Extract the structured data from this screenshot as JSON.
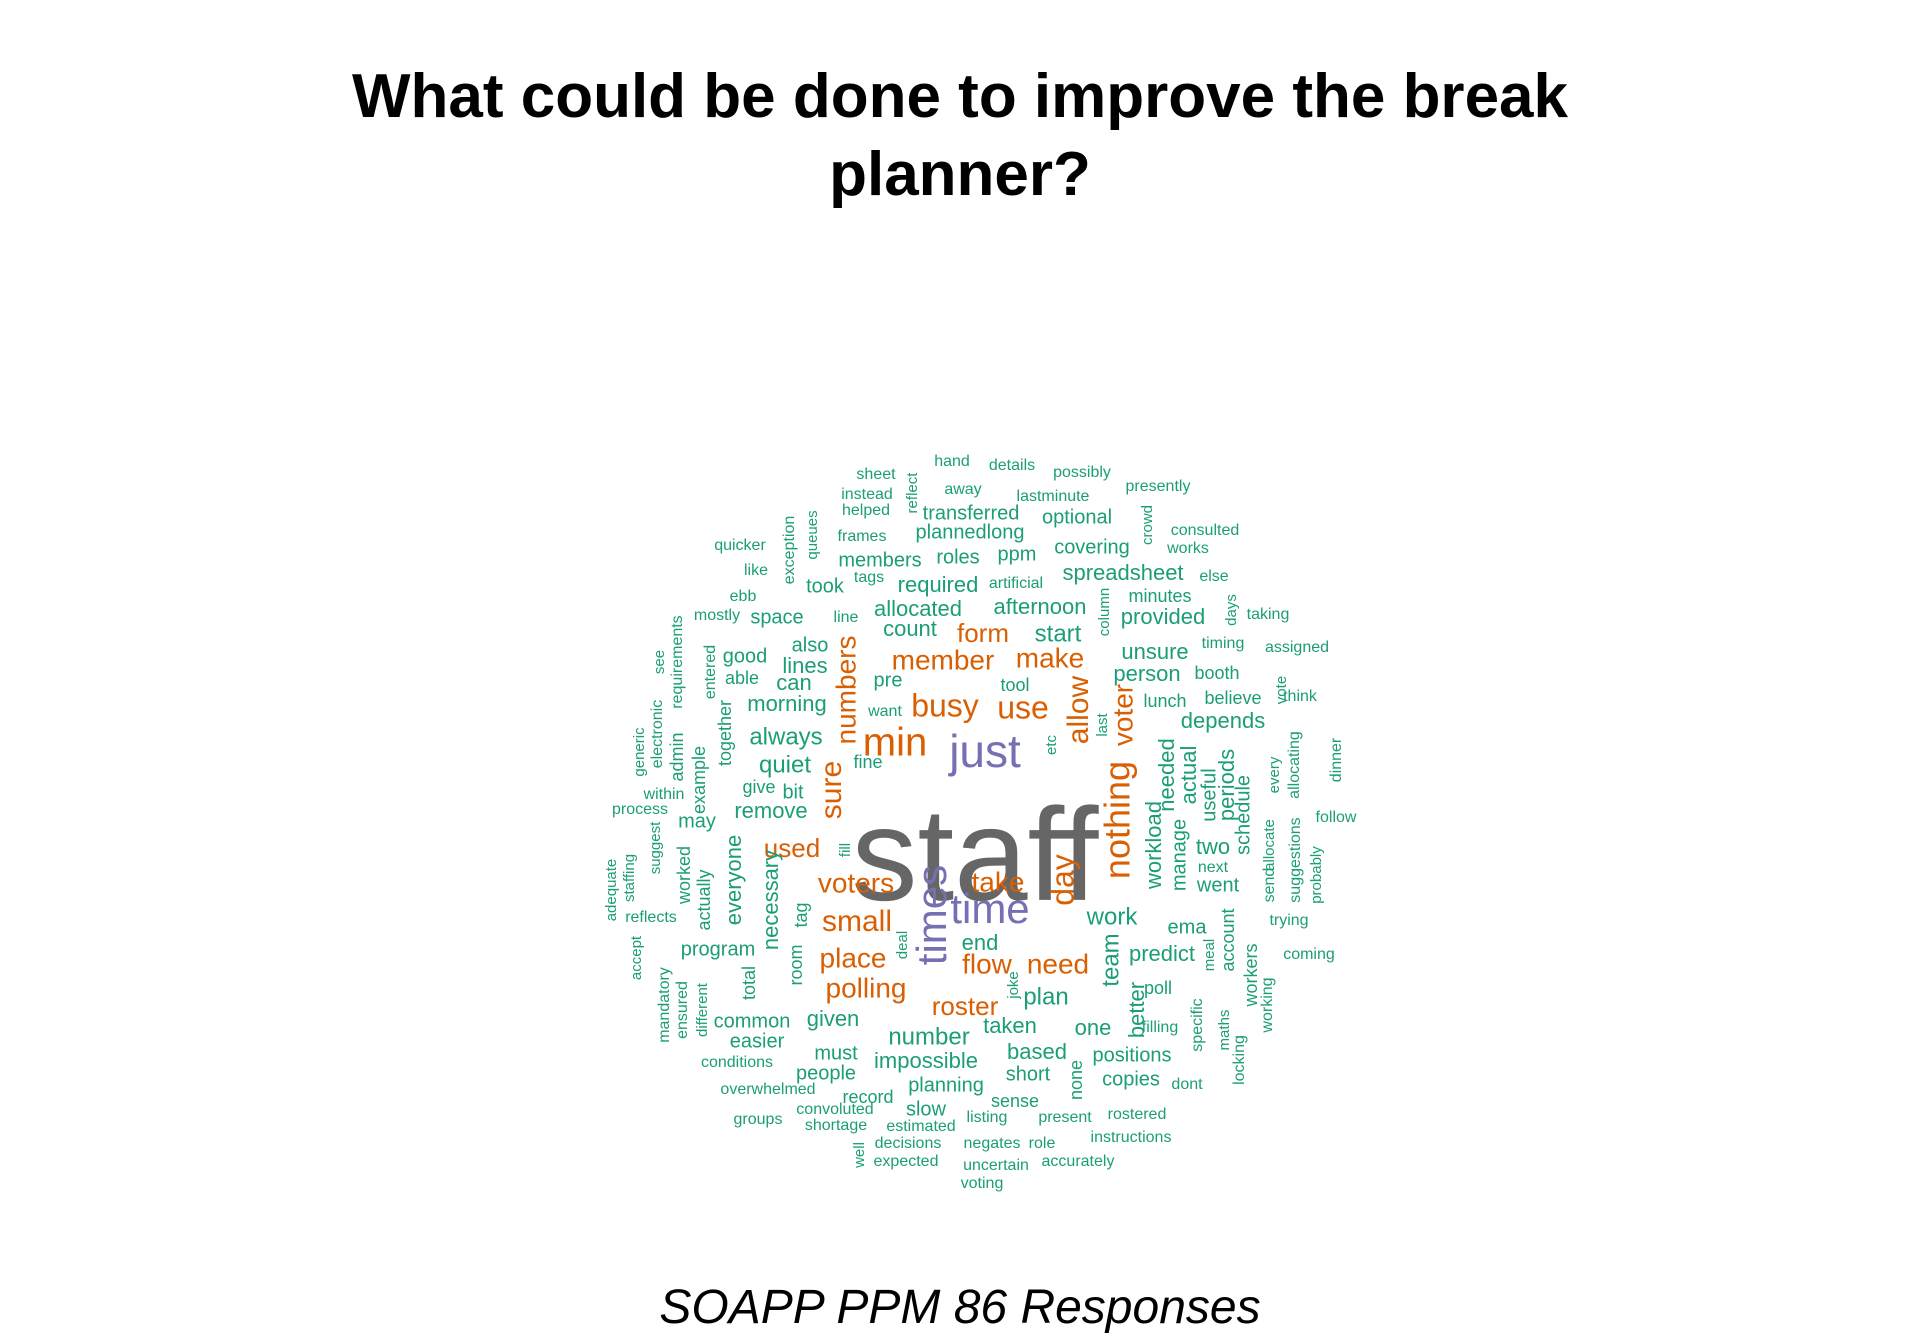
{
  "title": {
    "line1": "What could be done to improve the break",
    "line2": "planner?"
  },
  "caption": "SOAPP PPM 86 Responses",
  "colors": {
    "tier1": "#666666",
    "tier2": "#7570b3",
    "tier3": "#d95f02",
    "tier4": "#1b9e77"
  },
  "words": [
    {
      "text": "staff",
      "tier": 1,
      "weight": 10
    },
    {
      "text": "just",
      "tier": 2,
      "weight": 6
    },
    {
      "text": "time",
      "tier": 2,
      "weight": 6
    },
    {
      "text": "times",
      "tier": 2,
      "weight": 6
    },
    {
      "text": "min",
      "tier": 3,
      "weight": 5
    },
    {
      "text": "busy",
      "tier": 3,
      "weight": 4
    },
    {
      "text": "use",
      "tier": 3,
      "weight": 4
    },
    {
      "text": "nothing",
      "tier": 3,
      "weight": 4
    },
    {
      "text": "allow",
      "tier": 3,
      "weight": 4
    },
    {
      "text": "sure",
      "tier": 3,
      "weight": 4
    },
    {
      "text": "day",
      "tier": 3,
      "weight": 4
    },
    {
      "text": "voter",
      "tier": 3,
      "weight": 3
    },
    {
      "text": "numbers",
      "tier": 3,
      "weight": 3
    },
    {
      "text": "make",
      "tier": 3,
      "weight": 3
    },
    {
      "text": "member",
      "tier": 3,
      "weight": 3
    },
    {
      "text": "form",
      "tier": 3,
      "weight": 3
    },
    {
      "text": "voters",
      "tier": 3,
      "weight": 3
    },
    {
      "text": "take",
      "tier": 3,
      "weight": 3
    },
    {
      "text": "small",
      "tier": 3,
      "weight": 3
    },
    {
      "text": "place",
      "tier": 3,
      "weight": 3
    },
    {
      "text": "need",
      "tier": 3,
      "weight": 3
    },
    {
      "text": "flow",
      "tier": 3,
      "weight": 3
    },
    {
      "text": "polling",
      "tier": 3,
      "weight": 3
    },
    {
      "text": "roster",
      "tier": 3,
      "weight": 3
    },
    {
      "text": "used",
      "tier": 3,
      "weight": 3
    },
    {
      "text": "always",
      "tier": 4,
      "weight": 2
    },
    {
      "text": "quiet",
      "tier": 4,
      "weight": 2
    },
    {
      "text": "morning",
      "tier": 4,
      "weight": 2
    },
    {
      "text": "remove",
      "tier": 4,
      "weight": 2
    },
    {
      "text": "workload",
      "tier": 4,
      "weight": 2
    },
    {
      "text": "needed",
      "tier": 4,
      "weight": 2
    },
    {
      "text": "manage",
      "tier": 4,
      "weight": 2
    },
    {
      "text": "actual",
      "tier": 4,
      "weight": 2
    },
    {
      "text": "useful",
      "tier": 4,
      "weight": 2
    },
    {
      "text": "periods",
      "tier": 4,
      "weight": 2
    },
    {
      "text": "person",
      "tier": 4,
      "weight": 2
    },
    {
      "text": "unsure",
      "tier": 4,
      "weight": 2
    },
    {
      "text": "depends",
      "tier": 4,
      "weight": 2
    },
    {
      "text": "two",
      "tier": 4,
      "weight": 2
    },
    {
      "text": "went",
      "tier": 4,
      "weight": 2
    },
    {
      "text": "work",
      "tier": 4,
      "weight": 2
    },
    {
      "text": "team",
      "tier": 4,
      "weight": 2
    },
    {
      "text": "predict",
      "tier": 4,
      "weight": 2
    },
    {
      "text": "end",
      "tier": 4,
      "weight": 2
    },
    {
      "text": "plan",
      "tier": 4,
      "weight": 2
    },
    {
      "text": "better",
      "tier": 4,
      "weight": 2
    },
    {
      "text": "taken",
      "tier": 4,
      "weight": 2
    },
    {
      "text": "one",
      "tier": 4,
      "weight": 2
    },
    {
      "text": "number",
      "tier": 4,
      "weight": 2
    },
    {
      "text": "impossible",
      "tier": 4,
      "weight": 2
    },
    {
      "text": "based",
      "tier": 4,
      "weight": 2
    },
    {
      "text": "short",
      "tier": 4,
      "weight": 2
    },
    {
      "text": "start",
      "tier": 4,
      "weight": 2
    },
    {
      "text": "count",
      "tier": 4,
      "weight": 2
    },
    {
      "text": "allocated",
      "tier": 4,
      "weight": 2
    },
    {
      "text": "afternoon",
      "tier": 4,
      "weight": 2
    },
    {
      "text": "provided",
      "tier": 4,
      "weight": 2
    },
    {
      "text": "spreadsheet",
      "tier": 4,
      "weight": 2
    },
    {
      "text": "required",
      "tier": 4,
      "weight": 2
    },
    {
      "text": "members",
      "tier": 4,
      "weight": 2
    },
    {
      "text": "roles",
      "tier": 4,
      "weight": 2
    },
    {
      "text": "covering",
      "tier": 4,
      "weight": 2
    },
    {
      "text": "plannedlong",
      "tier": 4,
      "weight": 2
    },
    {
      "text": "transferred",
      "tier": 4,
      "weight": 2
    },
    {
      "text": "optional",
      "tier": 4,
      "weight": 2
    },
    {
      "text": "lines",
      "tier": 4,
      "weight": 2
    },
    {
      "text": "can",
      "tier": 4,
      "weight": 2
    },
    {
      "text": "pre",
      "tier": 4,
      "weight": 2
    },
    {
      "text": "given",
      "tier": 4,
      "weight": 2
    },
    {
      "text": "common",
      "tier": 4,
      "weight": 2
    },
    {
      "text": "program",
      "tier": 4,
      "weight": 2
    },
    {
      "text": "everyone",
      "tier": 4,
      "weight": 2
    },
    {
      "text": "necessary",
      "tier": 4,
      "weight": 2
    },
    {
      "text": "may",
      "tier": 4,
      "weight": 2
    },
    {
      "text": "people",
      "tier": 4,
      "weight": 2
    },
    {
      "text": "copies",
      "tier": 4,
      "weight": 2
    },
    {
      "text": "positions",
      "tier": 4,
      "weight": 2
    },
    {
      "text": "planning",
      "tier": 4,
      "weight": 2
    },
    {
      "text": "record",
      "tier": 4,
      "weight": 2
    },
    {
      "text": "slow",
      "tier": 4,
      "weight": 2
    },
    {
      "text": "sense",
      "tier": 4,
      "weight": 2
    },
    {
      "text": "schedule",
      "tier": 4,
      "weight": 2
    },
    {
      "text": "good",
      "tier": 4,
      "weight": 2
    },
    {
      "text": "space",
      "tier": 4,
      "weight": 2
    },
    {
      "text": "also",
      "tier": 4,
      "weight": 2
    },
    {
      "text": "bit",
      "tier": 4,
      "weight": 2
    },
    {
      "text": "easier",
      "tier": 4,
      "weight": 2
    },
    {
      "text": "must",
      "tier": 4,
      "weight": 2
    },
    {
      "text": "took",
      "tier": 4,
      "weight": 2
    },
    {
      "text": "ppm",
      "tier": 4,
      "weight": 2
    },
    {
      "text": "ema",
      "tier": 4,
      "weight": 2
    },
    {
      "text": "none",
      "tier": 4,
      "weight": 2
    },
    {
      "text": "sheet",
      "tier": 4,
      "weight": 1
    },
    {
      "text": "hand",
      "tier": 4,
      "weight": 1
    },
    {
      "text": "details",
      "tier": 4,
      "weight": 1
    },
    {
      "text": "possibly",
      "tier": 4,
      "weight": 1
    },
    {
      "text": "reflect",
      "tier": 4,
      "weight": 1
    },
    {
      "text": "instead",
      "tier": 4,
      "weight": 1
    },
    {
      "text": "away",
      "tier": 4,
      "weight": 1
    },
    {
      "text": "lastminute",
      "tier": 4,
      "weight": 1
    },
    {
      "text": "presently",
      "tier": 4,
      "weight": 1
    },
    {
      "text": "helped",
      "tier": 4,
      "weight": 1
    },
    {
      "text": "crowd",
      "tier": 4,
      "weight": 1
    },
    {
      "text": "consulted",
      "tier": 4,
      "weight": 1
    },
    {
      "text": "works",
      "tier": 4,
      "weight": 1
    },
    {
      "text": "quicker",
      "tier": 4,
      "weight": 1
    },
    {
      "text": "exception",
      "tier": 4,
      "weight": 1
    },
    {
      "text": "queues",
      "tier": 4,
      "weight": 1
    },
    {
      "text": "frames",
      "tier": 4,
      "weight": 1
    },
    {
      "text": "like",
      "tier": 4,
      "weight": 1
    },
    {
      "text": "tags",
      "tier": 4,
      "weight": 1
    },
    {
      "text": "artificial",
      "tier": 4,
      "weight": 1
    },
    {
      "text": "else",
      "tier": 4,
      "weight": 1
    },
    {
      "text": "minutes",
      "tier": 4,
      "weight": 1
    },
    {
      "text": "ebb",
      "tier": 4,
      "weight": 1
    },
    {
      "text": "column",
      "tier": 4,
      "weight": 1
    },
    {
      "text": "days",
      "tier": 4,
      "weight": 1
    },
    {
      "text": "taking",
      "tier": 4,
      "weight": 1
    },
    {
      "text": "mostly",
      "tier": 4,
      "weight": 1
    },
    {
      "text": "line",
      "tier": 4,
      "weight": 1
    },
    {
      "text": "timing",
      "tier": 4,
      "weight": 1
    },
    {
      "text": "assigned",
      "tier": 4,
      "weight": 1
    },
    {
      "text": "see",
      "tier": 4,
      "weight": 1
    },
    {
      "text": "requirements",
      "tier": 4,
      "weight": 1
    },
    {
      "text": "entered",
      "tier": 4,
      "weight": 1
    },
    {
      "text": "booth",
      "tier": 4,
      "weight": 1
    },
    {
      "text": "able",
      "tier": 4,
      "weight": 1
    },
    {
      "text": "tool",
      "tier": 4,
      "weight": 1
    },
    {
      "text": "believe",
      "tier": 4,
      "weight": 1
    },
    {
      "text": "vote",
      "tier": 4,
      "weight": 1
    },
    {
      "text": "think",
      "tier": 4,
      "weight": 1
    },
    {
      "text": "want",
      "tier": 4,
      "weight": 1
    },
    {
      "text": "lunch",
      "tier": 4,
      "weight": 1
    },
    {
      "text": "last",
      "tier": 4,
      "weight": 1
    },
    {
      "text": "electronic",
      "tier": 4,
      "weight": 1
    },
    {
      "text": "generic",
      "tier": 4,
      "weight": 1
    },
    {
      "text": "admin",
      "tier": 4,
      "weight": 1
    },
    {
      "text": "together",
      "tier": 4,
      "weight": 1
    },
    {
      "text": "example",
      "tier": 4,
      "weight": 1
    },
    {
      "text": "allocating",
      "tier": 4,
      "weight": 1
    },
    {
      "text": "every",
      "tier": 4,
      "weight": 1
    },
    {
      "text": "dinner",
      "tier": 4,
      "weight": 1
    },
    {
      "text": "etc",
      "tier": 4,
      "weight": 1
    },
    {
      "text": "fine",
      "tier": 4,
      "weight": 1
    },
    {
      "text": "within",
      "tier": 4,
      "weight": 1
    },
    {
      "text": "give",
      "tier": 4,
      "weight": 1
    },
    {
      "text": "process",
      "tier": 4,
      "weight": 1
    },
    {
      "text": "suggest",
      "tier": 4,
      "weight": 1
    },
    {
      "text": "follow",
      "tier": 4,
      "weight": 1
    },
    {
      "text": "allocate",
      "tier": 4,
      "weight": 1
    },
    {
      "text": "suggestions",
      "tier": 4,
      "weight": 1
    },
    {
      "text": "fill",
      "tier": 4,
      "weight": 1
    },
    {
      "text": "staffing",
      "tier": 4,
      "weight": 1
    },
    {
      "text": "adequate",
      "tier": 4,
      "weight": 1
    },
    {
      "text": "worked",
      "tier": 4,
      "weight": 1
    },
    {
      "text": "actually",
      "tier": 4,
      "weight": 1
    },
    {
      "text": "next",
      "tier": 4,
      "weight": 1
    },
    {
      "text": "send",
      "tier": 4,
      "weight": 1
    },
    {
      "text": "probably",
      "tier": 4,
      "weight": 1
    },
    {
      "text": "reflects",
      "tier": 4,
      "weight": 1
    },
    {
      "text": "tag",
      "tier": 4,
      "weight": 1
    },
    {
      "text": "trying",
      "tier": 4,
      "weight": 1
    },
    {
      "text": "account",
      "tier": 4,
      "weight": 1
    },
    {
      "text": "accept",
      "tier": 4,
      "weight": 1
    },
    {
      "text": "deal",
      "tier": 4,
      "weight": 1
    },
    {
      "text": "meal",
      "tier": 4,
      "weight": 1
    },
    {
      "text": "room",
      "tier": 4,
      "weight": 1
    },
    {
      "text": "coming",
      "tier": 4,
      "weight": 1
    },
    {
      "text": "mandatory",
      "tier": 4,
      "weight": 1
    },
    {
      "text": "ensured",
      "tier": 4,
      "weight": 1
    },
    {
      "text": "total",
      "tier": 4,
      "weight": 1
    },
    {
      "text": "workers",
      "tier": 4,
      "weight": 1
    },
    {
      "text": "poll",
      "tier": 4,
      "weight": 1
    },
    {
      "text": "joke",
      "tier": 4,
      "weight": 1
    },
    {
      "text": "different",
      "tier": 4,
      "weight": 1
    },
    {
      "text": "working",
      "tier": 4,
      "weight": 1
    },
    {
      "text": "specific",
      "tier": 4,
      "weight": 1
    },
    {
      "text": "filling",
      "tier": 4,
      "weight": 1
    },
    {
      "text": "maths",
      "tier": 4,
      "weight": 1
    },
    {
      "text": "conditions",
      "tier": 4,
      "weight": 1
    },
    {
      "text": "locking",
      "tier": 4,
      "weight": 1
    },
    {
      "text": "dont",
      "tier": 4,
      "weight": 1
    },
    {
      "text": "overwhelmed",
      "tier": 4,
      "weight": 1
    },
    {
      "text": "convoluted",
      "tier": 4,
      "weight": 1
    },
    {
      "text": "listing",
      "tier": 4,
      "weight": 1
    },
    {
      "text": "present",
      "tier": 4,
      "weight": 1
    },
    {
      "text": "rostered",
      "tier": 4,
      "weight": 1
    },
    {
      "text": "groups",
      "tier": 4,
      "weight": 1
    },
    {
      "text": "shortage",
      "tier": 4,
      "weight": 1
    },
    {
      "text": "estimated",
      "tier": 4,
      "weight": 1
    },
    {
      "text": "decisions",
      "tier": 4,
      "weight": 1
    },
    {
      "text": "negates",
      "tier": 4,
      "weight": 1
    },
    {
      "text": "role",
      "tier": 4,
      "weight": 1
    },
    {
      "text": "instructions",
      "tier": 4,
      "weight": 1
    },
    {
      "text": "well",
      "tier": 4,
      "weight": 1
    },
    {
      "text": "expected",
      "tier": 4,
      "weight": 1
    },
    {
      "text": "uncertain",
      "tier": 4,
      "weight": 1
    },
    {
      "text": "accurately",
      "tier": 4,
      "weight": 1
    },
    {
      "text": "voting",
      "tier": 4,
      "weight": 1
    }
  ]
}
